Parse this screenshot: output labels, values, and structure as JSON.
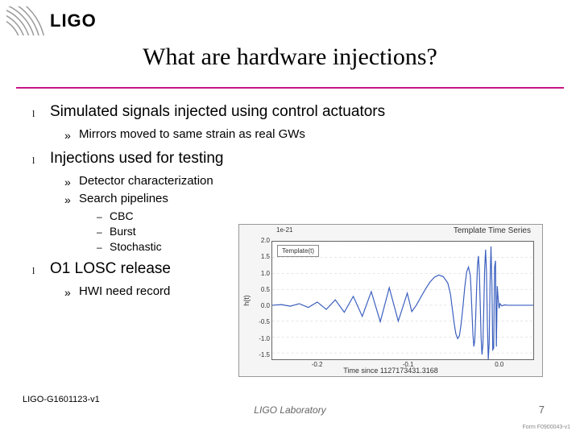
{
  "logo": {
    "text": "LIGO"
  },
  "title": "What are hardware injections?",
  "bullets": [
    {
      "text": "Simulated signals injected using control actuators",
      "sub": [
        {
          "text": "Mirrors moved to same strain as real GWs"
        }
      ]
    },
    {
      "text": "Injections used for testing",
      "sub": [
        {
          "text": "Detector characterization"
        },
        {
          "text": "Search pipelines",
          "subsub": [
            {
              "text": "CBC"
            },
            {
              "text": "Burst"
            },
            {
              "text": "Stochastic"
            }
          ]
        }
      ]
    },
    {
      "text": "O1 LOSC release",
      "sub": [
        {
          "text": "HWI need record"
        }
      ]
    }
  ],
  "chart": {
    "type": "line",
    "title": "Template Time Series",
    "scale_label": "1e-21",
    "xlabel": "Time since 1127173431.3168",
    "ylabel": "h(t)",
    "legend": "Template(t)",
    "yticks": [
      -1.5,
      -1.0,
      -0.5,
      0.0,
      0.5,
      1.0,
      1.5,
      2.0
    ],
    "ylim": [
      -1.7,
      2.0
    ],
    "xticks": [
      -0.2,
      -0.1,
      0.0
    ],
    "xlim": [
      -0.25,
      0.04
    ],
    "background_color": "#f5f5f5",
    "plot_bg": "#ffffff",
    "grid_color": "#cccccc",
    "line_color": "#3b5fbf",
    "line_width": 1.2,
    "waveform": [
      [
        -0.25,
        0.0
      ],
      [
        -0.24,
        0.02
      ],
      [
        -0.23,
        -0.03
      ],
      [
        -0.22,
        0.05
      ],
      [
        -0.21,
        -0.07
      ],
      [
        -0.2,
        0.1
      ],
      [
        -0.19,
        -0.13
      ],
      [
        -0.18,
        0.17
      ],
      [
        -0.17,
        -0.22
      ],
      [
        -0.16,
        0.28
      ],
      [
        -0.15,
        -0.35
      ],
      [
        -0.14,
        0.43
      ],
      [
        -0.13,
        -0.52
      ],
      [
        -0.12,
        0.55
      ],
      [
        -0.11,
        -0.5
      ],
      [
        -0.1,
        0.38
      ],
      [
        -0.095,
        -0.2
      ],
      [
        -0.09,
        0.0
      ],
      [
        -0.085,
        0.25
      ],
      [
        -0.08,
        0.5
      ],
      [
        -0.075,
        0.72
      ],
      [
        -0.07,
        0.88
      ],
      [
        -0.065,
        0.95
      ],
      [
        -0.06,
        0.9
      ],
      [
        -0.055,
        0.7
      ],
      [
        -0.052,
        0.35
      ],
      [
        -0.05,
        -0.1
      ],
      [
        -0.048,
        -0.55
      ],
      [
        -0.046,
        -0.9
      ],
      [
        -0.044,
        -1.05
      ],
      [
        -0.042,
        -0.95
      ],
      [
        -0.04,
        -0.55
      ],
      [
        -0.038,
        0.0
      ],
      [
        -0.036,
        0.6
      ],
      [
        -0.034,
        1.05
      ],
      [
        -0.032,
        1.2
      ],
      [
        -0.03,
        0.95
      ],
      [
        -0.029,
        0.4
      ],
      [
        -0.028,
        -0.3
      ],
      [
        -0.027,
        -0.95
      ],
      [
        -0.026,
        -1.3
      ],
      [
        -0.025,
        -1.1
      ],
      [
        -0.024,
        -0.4
      ],
      [
        -0.023,
        0.5
      ],
      [
        -0.022,
        1.25
      ],
      [
        -0.021,
        1.55
      ],
      [
        -0.02,
        1.1
      ],
      [
        -0.019,
        0.1
      ],
      [
        -0.018,
        -1.0
      ],
      [
        -0.017,
        -1.55
      ],
      [
        -0.016,
        -1.25
      ],
      [
        -0.015,
        -0.1
      ],
      [
        -0.014,
        1.15
      ],
      [
        -0.013,
        1.75
      ],
      [
        -0.012,
        1.05
      ],
      [
        -0.011,
        -0.6
      ],
      [
        -0.01,
        -1.7
      ],
      [
        -0.009,
        -1.2
      ],
      [
        -0.008,
        0.7
      ],
      [
        -0.007,
        1.85
      ],
      [
        -0.006,
        0.7
      ],
      [
        -0.005,
        -1.4
      ],
      [
        -0.004,
        -1.35
      ],
      [
        -0.003,
        1.2
      ],
      [
        -0.002,
        1.4
      ],
      [
        -0.001,
        -1.3
      ],
      [
        0.0,
        0.6
      ],
      [
        0.001,
        0.2
      ],
      [
        0.002,
        -0.1
      ],
      [
        0.003,
        0.05
      ],
      [
        0.005,
        -0.02
      ],
      [
        0.008,
        0.01
      ],
      [
        0.012,
        0.0
      ],
      [
        0.02,
        0.0
      ],
      [
        0.04,
        0.0
      ]
    ]
  },
  "footer": {
    "doc_id": "LIGO-G1601123-v1",
    "lab": "LIGO Laboratory",
    "page": "7",
    "form": "Form F0900043-v1"
  },
  "colors": {
    "divider": "#c71585",
    "footer_gray": "#777777"
  }
}
